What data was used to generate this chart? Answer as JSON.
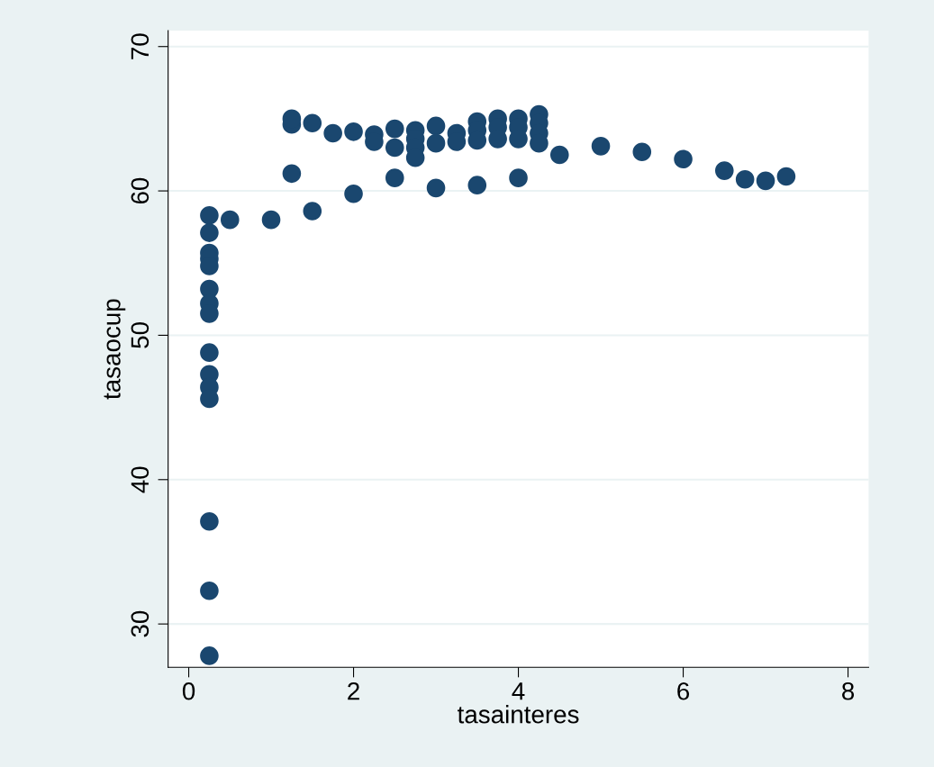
{
  "chart_data": {
    "type": "scatter",
    "xlabel": "tasainteres",
    "ylabel": "tasaocup",
    "x": [
      0.25,
      0.25,
      0.25,
      0.25,
      0.25,
      0.25,
      0.25,
      0.25,
      0.25,
      0.25,
      0.25,
      0.25,
      0.25,
      0.25,
      0.25,
      0.5,
      1,
      1.25,
      1.25,
      1.25,
      1.5,
      1.5,
      1.75,
      2,
      2,
      2.25,
      2.25,
      2.5,
      2.5,
      2.5,
      2.75,
      2.75,
      2.75,
      2.75,
      3,
      3,
      3,
      3.25,
      3.25,
      3.5,
      3.5,
      3.5,
      3.5,
      3.75,
      3.75,
      3.75,
      4,
      4,
      4,
      4,
      4.25,
      4.25,
      4.25,
      4.25,
      4.5,
      5,
      5.5,
      6,
      6.5,
      6.75,
      7,
      7.25
    ],
    "series": [
      {
        "color": "#1a476f",
        "values": [
          58.3,
          57.1,
          55.7,
          55.3,
          54.8,
          53.2,
          52.2,
          51.5,
          48.8,
          47.3,
          46.4,
          45.6,
          37.1,
          32.3,
          27.8,
          58.0,
          58.0,
          61.2,
          64.6,
          65.0,
          64.7,
          58.6,
          64.0,
          64.1,
          59.8,
          63.9,
          63.4,
          64.3,
          63.0,
          60.9,
          64.2,
          63.6,
          63.0,
          62.3,
          64.5,
          63.3,
          60.2,
          64.0,
          63.4,
          64.8,
          64.2,
          63.5,
          60.4,
          65.0,
          64.4,
          63.6,
          65.0,
          64.4,
          63.6,
          60.9,
          65.3,
          64.7,
          64.0,
          63.3,
          62.5,
          63.1,
          62.7,
          62.2,
          61.4,
          60.8,
          60.7,
          61.0
        ]
      }
    ],
    "xlim": [
      -0.25,
      8.25
    ],
    "xticks": [
      0,
      2,
      4,
      6,
      8
    ],
    "ylim": [
      27,
      71.1
    ],
    "yticks": [
      30,
      40,
      50,
      60,
      70
    ],
    "grid": "y",
    "marker": "circle",
    "legend": false
  }
}
